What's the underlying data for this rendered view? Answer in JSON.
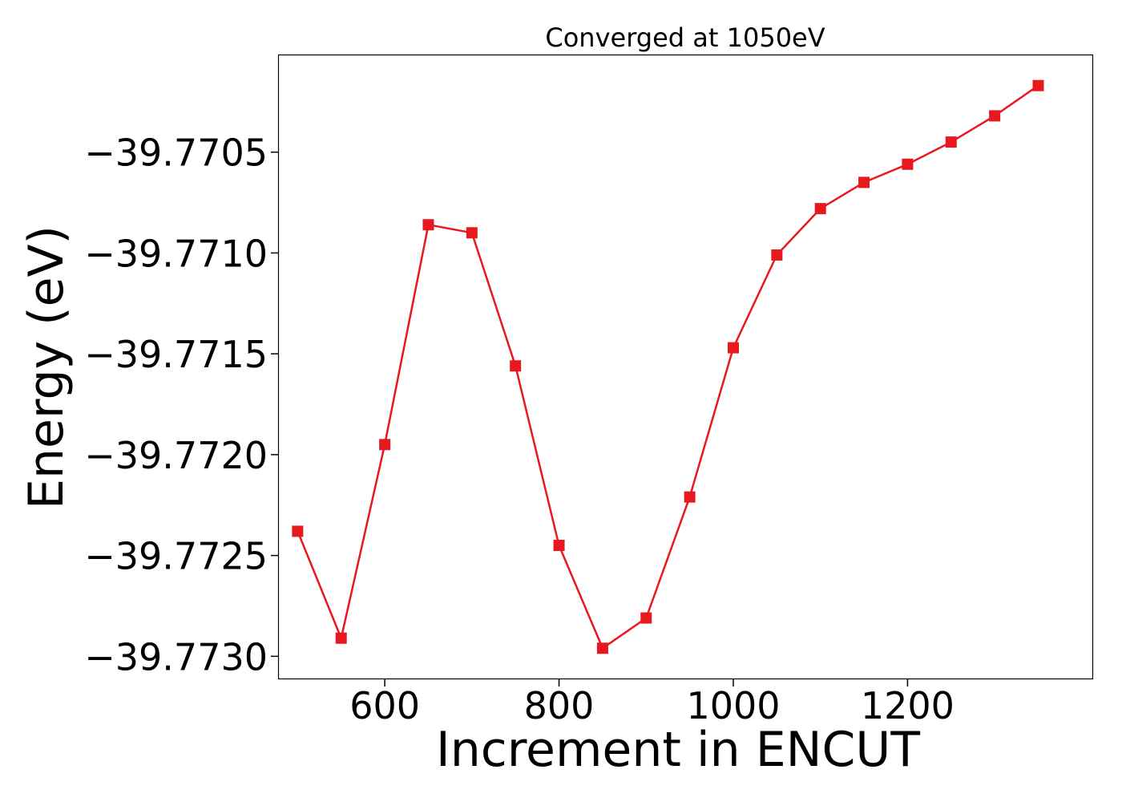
{
  "chart_data": {
    "type": "line",
    "title": "Converged at 1050eV",
    "xlabel": "Increment in ENCUT",
    "ylabel": "Energy (eV)",
    "x": [
      500,
      550,
      600,
      650,
      700,
      750,
      800,
      850,
      900,
      950,
      1000,
      1050,
      1100,
      1150,
      1200,
      1250,
      1300,
      1350
    ],
    "series": [
      {
        "values": [
          -39.77238,
          -39.77291,
          -39.77195,
          -39.77086,
          -39.7709,
          -39.77156,
          -39.77245,
          -39.77296,
          -39.77281,
          -39.77221,
          -39.77147,
          -39.77101,
          -39.77078,
          -39.77065,
          -39.77056,
          -39.77045,
          -39.77032,
          -39.77017
        ],
        "color": "#e8191e",
        "marker": "square"
      }
    ],
    "xlim": [
      478.5,
      1413
    ],
    "ylim": [
      -39.77311,
      -39.77002
    ],
    "xticks": [
      600,
      800,
      1000,
      1200
    ],
    "xtick_labels": [
      "600",
      "800",
      "1000",
      "1200"
    ],
    "yticks": [
      -39.7705,
      -39.771,
      -39.7715,
      -39.772,
      -39.7725,
      -39.773
    ],
    "ytick_labels": [
      "−39.7705",
      "−39.7710",
      "−39.7715",
      "−39.7720",
      "−39.7725",
      "−39.7730"
    ],
    "grid": false,
    "legend": false
  }
}
